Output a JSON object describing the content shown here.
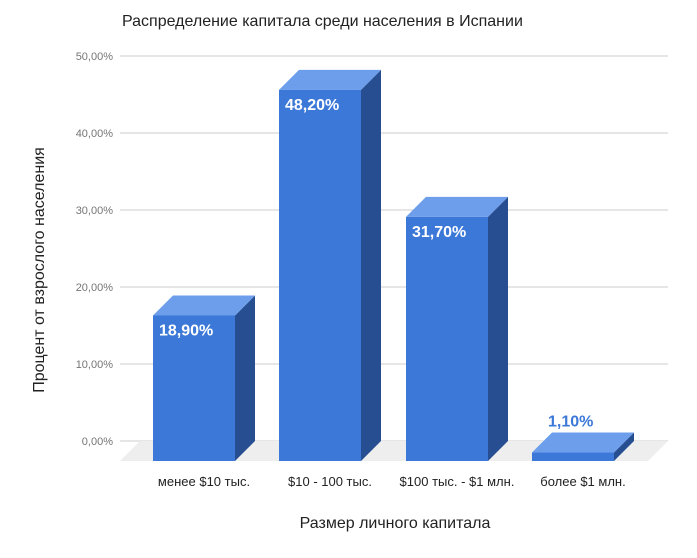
{
  "chart_data": {
    "type": "bar",
    "title": "Распределение капитала среди населения в Испании",
    "xlabel": "Размер личного капитала",
    "ylabel": "Процент от взрослого населения",
    "categories": [
      "менее $10 тыс.",
      "$10  - 100 тыс.",
      "$100 тыс. - $1 млн.",
      "более $1 млн."
    ],
    "values": [
      18.9,
      48.2,
      31.7,
      1.1
    ],
    "data_labels": [
      "18,90%",
      "48,20%",
      "31,70%",
      "1,10%"
    ],
    "ylim": [
      0,
      50
    ],
    "yticks": [
      0,
      10,
      20,
      30,
      40,
      50
    ],
    "ytick_labels": [
      "0,00%",
      "10,00%",
      "20,00%",
      "30,00%",
      "40,00%",
      "50,00%"
    ],
    "grid": true,
    "style": "3d",
    "colors": {
      "bar_front": "#3c78d8",
      "bar_top": "#6d9eeb",
      "bar_side": "#274e91",
      "floor": "#eeeeee",
      "grid": "#cccccc",
      "label_inside": "#ffffff",
      "label_outside": "#3c78d8"
    }
  }
}
